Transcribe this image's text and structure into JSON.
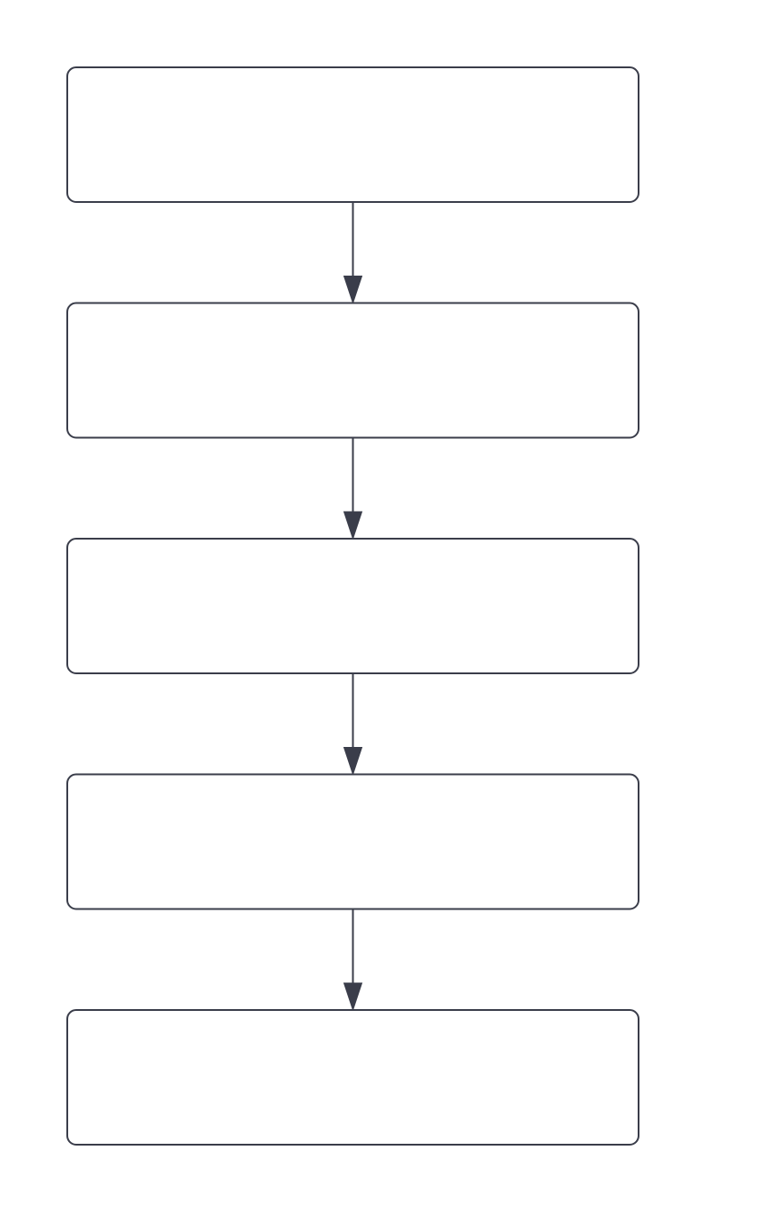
{
  "diagram": {
    "type": "flowchart",
    "direction": "top-to-bottom",
    "nodes": [
      {
        "id": "node-1",
        "label": ""
      },
      {
        "id": "node-2",
        "label": ""
      },
      {
        "id": "node-3",
        "label": ""
      },
      {
        "id": "node-4",
        "label": ""
      },
      {
        "id": "node-5",
        "label": ""
      }
    ],
    "edges": [
      {
        "from": "node-1",
        "to": "node-2"
      },
      {
        "from": "node-2",
        "to": "node-3"
      },
      {
        "from": "node-3",
        "to": "node-4"
      },
      {
        "from": "node-4",
        "to": "node-5"
      }
    ],
    "colors": {
      "stroke": "#3a3d4a",
      "fill": "#ffffff",
      "background": "#ffffff"
    }
  }
}
